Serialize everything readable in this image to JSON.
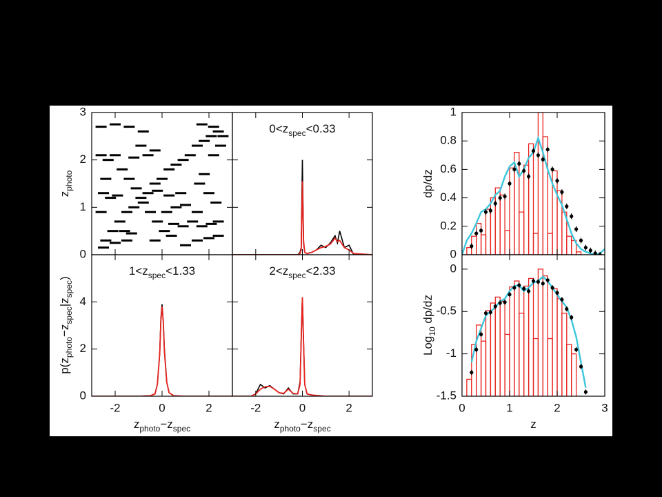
{
  "chart_data": [
    {
      "type": "scatter",
      "ylabel": [
        {
          "text": "z"
        },
        {
          "text": "photo",
          "sub": true
        }
      ],
      "x": [
        -2.4,
        -2.1,
        -1.8,
        -1.5,
        -1.2,
        -0.9,
        -0.6,
        -0.3,
        0,
        0.3,
        0.6,
        0.9,
        1.2,
        1.5,
        1.8,
        2.1,
        2.4,
        -2.0,
        -1.7,
        -1.4,
        -1.1,
        -0.8,
        -0.5,
        -0.2,
        0.1,
        0.4,
        -2.5,
        -2.2,
        -1.9,
        -0.2,
        0.3,
        0.8,
        0.5,
        0.9,
        1.3,
        1.7,
        2.1,
        2.4,
        -2.6,
        -2.3,
        -1.2,
        -0.6,
        -0.9,
        -0.3,
        -2.6,
        -2.0,
        -1.4,
        -0.8,
        1.7,
        2.2,
        2.6,
        -2.5,
        -2.0,
        -1.5,
        1.0,
        1.5,
        2.0,
        2.4,
        1.6,
        2.0,
        2.3,
        1.8,
        1.5,
        2.5,
        2.2,
        -1.6,
        -1.3,
        -2.6,
        -2.4,
        -0.3,
        0.6,
        0.2,
        1.0
      ],
      "y": [
        0.3,
        0.5,
        0.7,
        0.9,
        1.0,
        1.2,
        1.3,
        1.5,
        1.6,
        1.8,
        1.9,
        2.0,
        2.1,
        2.3,
        2.4,
        2.5,
        2.6,
        2.1,
        1.8,
        1.6,
        1.4,
        1.1,
        0.9,
        0.7,
        0.5,
        0.4,
        1.3,
        1.2,
        1.25,
        1.35,
        1.25,
        1.3,
        0.65,
        0.6,
        0.7,
        0.6,
        0.65,
        0.7,
        2.1,
        2.0,
        2.05,
        2.1,
        2.3,
        2.2,
        2.7,
        2.75,
        2.7,
        2.6,
        2.75,
        2.7,
        2.5,
        0.15,
        0.25,
        0.3,
        0.2,
        0.3,
        0.35,
        0.4,
        1.5,
        1.3,
        1.1,
        1.7,
        0.9,
        2.3,
        2.1,
        0.5,
        0.45,
        0.9,
        1.6,
        0.3,
        1.0,
        0.9,
        1.05
      ],
      "color": "#000000",
      "xlim": [
        -3,
        3
      ],
      "ylim": [
        0,
        3
      ],
      "xticks": [
        -2,
        0,
        2
      ],
      "yticks": [
        0,
        1,
        2,
        3
      ]
    },
    {
      "type": "line",
      "annotation": [
        {
          "text": "0<z"
        },
        {
          "text": "spec",
          "sub": true
        },
        {
          "text": "<0.33"
        }
      ],
      "x": [
        -3,
        -2,
        -1,
        -0.5,
        -0.2,
        -0.1,
        -0.05,
        0,
        0.05,
        0.1,
        0.2,
        0.4,
        0.6,
        0.8,
        1.0,
        1.2,
        1.4,
        1.5,
        1.6,
        1.8,
        2.0,
        2.2,
        3
      ],
      "series": [
        {
          "color": "#000000",
          "values": [
            0,
            0,
            0,
            0,
            0,
            0.1,
            0.3,
            4.0,
            0.5,
            0.1,
            0.05,
            0.1,
            0.2,
            0.4,
            0.3,
            0.5,
            0.8,
            0.5,
            1.0,
            0.3,
            0.4,
            0,
            0
          ]
        },
        {
          "color": "#e8231f",
          "values": [
            0,
            0,
            0,
            0,
            0,
            0.05,
            0.2,
            3.1,
            0.6,
            0.1,
            0.05,
            0.1,
            0.2,
            0.3,
            0.35,
            0.45,
            0.7,
            0.55,
            0.6,
            0.3,
            0.2,
            0.05,
            0
          ]
        }
      ],
      "xlim": [
        -3,
        3
      ],
      "ylim": [
        0,
        6
      ],
      "xticks": [
        -2,
        0,
        2
      ],
      "yticks": [
        0,
        2,
        4
      ]
    },
    {
      "type": "line",
      "annotation": [
        {
          "text": "1<z"
        },
        {
          "text": "spec",
          "sub": true
        },
        {
          "text": "<1.33"
        }
      ],
      "ylabel": [
        {
          "text": "p(z"
        },
        {
          "text": "photo",
          "sub": true
        },
        {
          "text": "−z"
        },
        {
          "text": "spec",
          "sub": true
        },
        {
          "text": "|z"
        },
        {
          "text": "spec",
          "sub": true
        },
        {
          "text": ")"
        }
      ],
      "xlabel": [
        {
          "text": "z"
        },
        {
          "text": "photo",
          "sub": true
        },
        {
          "text": "−z"
        },
        {
          "text": "spec",
          "sub": true
        }
      ],
      "x": [
        -3,
        -1,
        -0.5,
        -0.3,
        -0.2,
        -0.1,
        -0.05,
        0,
        0.05,
        0.1,
        0.2,
        0.3,
        0.5,
        1,
        3
      ],
      "series": [
        {
          "color": "#000000",
          "values": [
            0,
            0,
            0.02,
            0.1,
            0.5,
            1.8,
            3.3,
            3.9,
            3.2,
            2.0,
            0.6,
            0.15,
            0.02,
            0,
            0
          ]
        },
        {
          "color": "#e8231f",
          "values": [
            0,
            0,
            0.02,
            0.1,
            0.5,
            1.8,
            3.2,
            3.8,
            3.2,
            1.9,
            0.6,
            0.15,
            0.02,
            0,
            0
          ]
        }
      ],
      "xlim": [
        -3,
        3
      ],
      "ylim": [
        0,
        6
      ],
      "xticks": [
        -2,
        0,
        2
      ],
      "yticks": [
        0,
        2,
        4
      ]
    },
    {
      "type": "line",
      "annotation": [
        {
          "text": "2<z"
        },
        {
          "text": "spec",
          "sub": true
        },
        {
          "text": "<2.33"
        }
      ],
      "xlabel": [
        {
          "text": "z"
        },
        {
          "text": "photo",
          "sub": true
        },
        {
          "text": "−z"
        },
        {
          "text": "spec",
          "sub": true
        }
      ],
      "x": [
        -3,
        -2.2,
        -2,
        -1.8,
        -1.6,
        -1.4,
        -1.2,
        -1,
        -0.8,
        -0.6,
        -0.4,
        -0.2,
        -0.1,
        -0.05,
        0,
        0.05,
        0.1,
        0.2,
        0.4,
        1,
        3
      ],
      "series": [
        {
          "color": "#000000",
          "values": [
            0,
            0,
            0.1,
            0.5,
            0.35,
            0.45,
            0.3,
            0.15,
            0.1,
            0.35,
            0.1,
            0.1,
            0.6,
            2.5,
            4.2,
            2.3,
            0.5,
            0.1,
            0.05,
            0,
            0
          ]
        },
        {
          "color": "#e8231f",
          "values": [
            0,
            0,
            0.1,
            0.3,
            0.4,
            0.42,
            0.3,
            0.15,
            0.12,
            0.3,
            0.12,
            0.1,
            0.5,
            2.4,
            4.2,
            2.3,
            0.5,
            0.1,
            0.05,
            0,
            0
          ]
        }
      ],
      "xlim": [
        -3,
        3
      ],
      "ylim": [
        0,
        6
      ],
      "xticks": [
        -2,
        0,
        2
      ],
      "yticks": [
        0,
        2,
        4
      ]
    },
    {
      "type": "histogram",
      "ylabel": [
        {
          "text": "dp/dz"
        }
      ],
      "bins": [
        0,
        0.1,
        0.2,
        0.3,
        0.4,
        0.5,
        0.6,
        0.7,
        0.8,
        0.9,
        1.0,
        1.1,
        1.2,
        1.3,
        1.4,
        1.5,
        1.6,
        1.7,
        1.8,
        1.9,
        2.0,
        2.1,
        2.2,
        2.3,
        2.4,
        2.5,
        2.6,
        2.7,
        2.8,
        2.9,
        3.0
      ],
      "values": [
        0,
        0.05,
        0.13,
        0.22,
        0.14,
        0.32,
        0.4,
        0.47,
        0.42,
        0.17,
        0.61,
        0.72,
        0.3,
        0.63,
        0.78,
        0.15,
        1.0,
        0.83,
        0.15,
        0.59,
        0.45,
        0.3,
        0.13,
        0.1,
        0.02,
        0,
        0,
        0,
        0,
        0
      ],
      "color": "#e8231f",
      "curve": {
        "color": "#3cc6dc",
        "x": [
          0,
          0.1,
          0.2,
          0.3,
          0.4,
          0.5,
          0.6,
          0.7,
          0.8,
          0.9,
          1.0,
          1.1,
          1.2,
          1.3,
          1.4,
          1.5,
          1.6,
          1.7,
          1.8,
          1.9,
          2.0,
          2.1,
          2.2,
          2.3,
          2.4,
          2.5,
          2.6,
          2.7,
          2.8,
          2.9,
          3.0
        ],
        "values": [
          0,
          0.1,
          0.15,
          0.22,
          0.3,
          0.32,
          0.36,
          0.42,
          0.45,
          0.55,
          0.62,
          0.65,
          0.55,
          0.6,
          0.68,
          0.72,
          0.82,
          0.72,
          0.6,
          0.5,
          0.42,
          0.35,
          0.25,
          0.15,
          0.08,
          0.04,
          0.02,
          0.01,
          0,
          0.01,
          0.04
        ]
      },
      "points": {
        "color": "#000000",
        "x": [
          0.2,
          0.3,
          0.4,
          0.5,
          0.6,
          0.7,
          0.8,
          0.9,
          1.0,
          1.1,
          1.2,
          1.3,
          1.4,
          1.5,
          1.6,
          1.7,
          1.8,
          1.9,
          2.0,
          2.1,
          2.2,
          2.3,
          2.4,
          2.5,
          2.6,
          2.7,
          2.8,
          2.9
        ],
        "values": [
          0.06,
          0.15,
          0.17,
          0.3,
          0.31,
          0.36,
          0.4,
          0.41,
          0.5,
          0.6,
          0.64,
          0.59,
          0.55,
          0.73,
          0.7,
          0.67,
          0.74,
          0.6,
          0.52,
          0.44,
          0.34,
          0.27,
          0.18,
          0.1,
          0.05,
          0.03,
          0.01,
          0.0
        ],
        "errors": [
          0.02,
          0.02,
          0.02,
          0.02,
          0.02,
          0.02,
          0.02,
          0.02,
          0.02,
          0.02,
          0.02,
          0.02,
          0.02,
          0.02,
          0.02,
          0.02,
          0.02,
          0.02,
          0.02,
          0.02,
          0.02,
          0.02,
          0.02,
          0.02,
          0.02,
          0.02,
          0.02,
          0.02
        ]
      },
      "xlim": [
        0,
        3
      ],
      "ylim": [
        0,
        1
      ],
      "xticks": [
        0,
        1,
        2,
        3
      ],
      "yticks": [
        0,
        0.2,
        0.4,
        0.6,
        0.8,
        1
      ]
    },
    {
      "type": "histogram",
      "ylabel": [
        {
          "text": "Log"
        },
        {
          "text": "10",
          "sub": true
        },
        {
          "text": " dp/dz"
        }
      ],
      "xlabel": [
        {
          "text": "z"
        }
      ],
      "bins": [
        0,
        0.1,
        0.2,
        0.3,
        0.4,
        0.5,
        0.6,
        0.7,
        0.8,
        0.9,
        1.0,
        1.1,
        1.2,
        1.3,
        1.4,
        1.5,
        1.6,
        1.7,
        1.8,
        1.9,
        2.0,
        2.1,
        2.2,
        2.3,
        2.4,
        2.5,
        2.6,
        2.7,
        2.8,
        2.9,
        3.0
      ],
      "values": [
        null,
        -1.3,
        -0.89,
        -0.66,
        -0.85,
        -0.49,
        -0.4,
        -0.33,
        -0.38,
        -0.77,
        -0.21,
        -0.14,
        -0.52,
        -0.2,
        -0.11,
        -0.82,
        0,
        -0.08,
        -0.82,
        -0.23,
        -0.35,
        -0.52,
        -0.89,
        -1.0,
        -1.7,
        null,
        null,
        null,
        null,
        null
      ],
      "color": "#e8231f",
      "curve": {
        "color": "#3cc6dc",
        "x": [
          0.2,
          0.3,
          0.4,
          0.5,
          0.6,
          0.7,
          0.8,
          0.9,
          1.0,
          1.1,
          1.2,
          1.3,
          1.4,
          1.5,
          1.6,
          1.7,
          1.8,
          1.9,
          2.0,
          2.1,
          2.2,
          2.3,
          2.4,
          2.5,
          2.6,
          2.7,
          2.8,
          2.9
        ],
        "values": [
          -1.1,
          -0.85,
          -0.7,
          -0.55,
          -0.5,
          -0.45,
          -0.38,
          -0.35,
          -0.26,
          -0.2,
          -0.19,
          -0.26,
          -0.22,
          -0.16,
          -0.14,
          -0.09,
          -0.14,
          -0.22,
          -0.3,
          -0.38,
          -0.45,
          -0.6,
          -0.8,
          -1.1,
          -1.4,
          null,
          null,
          null
        ]
      },
      "points": {
        "color": "#000000",
        "x": [
          0.2,
          0.3,
          0.4,
          0.5,
          0.6,
          0.7,
          0.8,
          0.9,
          1.0,
          1.1,
          1.2,
          1.3,
          1.4,
          1.5,
          1.6,
          1.7,
          1.8,
          1.9,
          2.0,
          2.1,
          2.2,
          2.3,
          2.4,
          2.5,
          2.6
        ],
        "values": [
          -1.22,
          -0.95,
          -0.77,
          -0.52,
          -0.51,
          -0.44,
          -0.4,
          -0.39,
          -0.3,
          -0.22,
          -0.19,
          -0.23,
          -0.26,
          -0.14,
          -0.15,
          -0.17,
          -0.13,
          -0.22,
          -0.28,
          -0.36,
          -0.47,
          -0.57,
          -0.95,
          -1.15,
          -1.45
        ],
        "errors": [
          0.03,
          0.03,
          0.03,
          0.03,
          0.03,
          0.03,
          0.03,
          0.03,
          0.03,
          0.03,
          0.03,
          0.03,
          0.03,
          0.03,
          0.03,
          0.03,
          0.03,
          0.03,
          0.03,
          0.03,
          0.03,
          0.03,
          0.03,
          0.03,
          0.03
        ]
      },
      "xlim": [
        0,
        3
      ],
      "ylim": [
        -1.5,
        0.17
      ],
      "xticks": [
        0,
        1,
        2,
        3
      ],
      "yticks": [
        -1.5,
        -1,
        -0.5,
        0
      ]
    }
  ]
}
